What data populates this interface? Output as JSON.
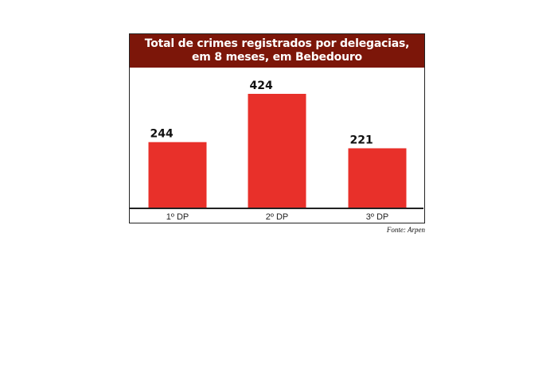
{
  "title_lines": [
    "Total de crimes registrados por delegacias,",
    "em 8 meses, em Bebedouro"
  ],
  "source": "Fonte: Arpen",
  "colors": {
    "title_background": "#7c1609",
    "bar": "#e8302a"
  },
  "chart_data": {
    "type": "bar",
    "title": "Total de crimes registrados por delegacias, em 8 meses, em Bebedouro",
    "categories": [
      "1º DP",
      "2º DP",
      "3º DP"
    ],
    "values": [
      244,
      424,
      221
    ],
    "xlabel": "",
    "ylabel": "",
    "ylim": [
      0,
      424
    ],
    "grid": false,
    "legend": "none",
    "data_labels": true
  }
}
